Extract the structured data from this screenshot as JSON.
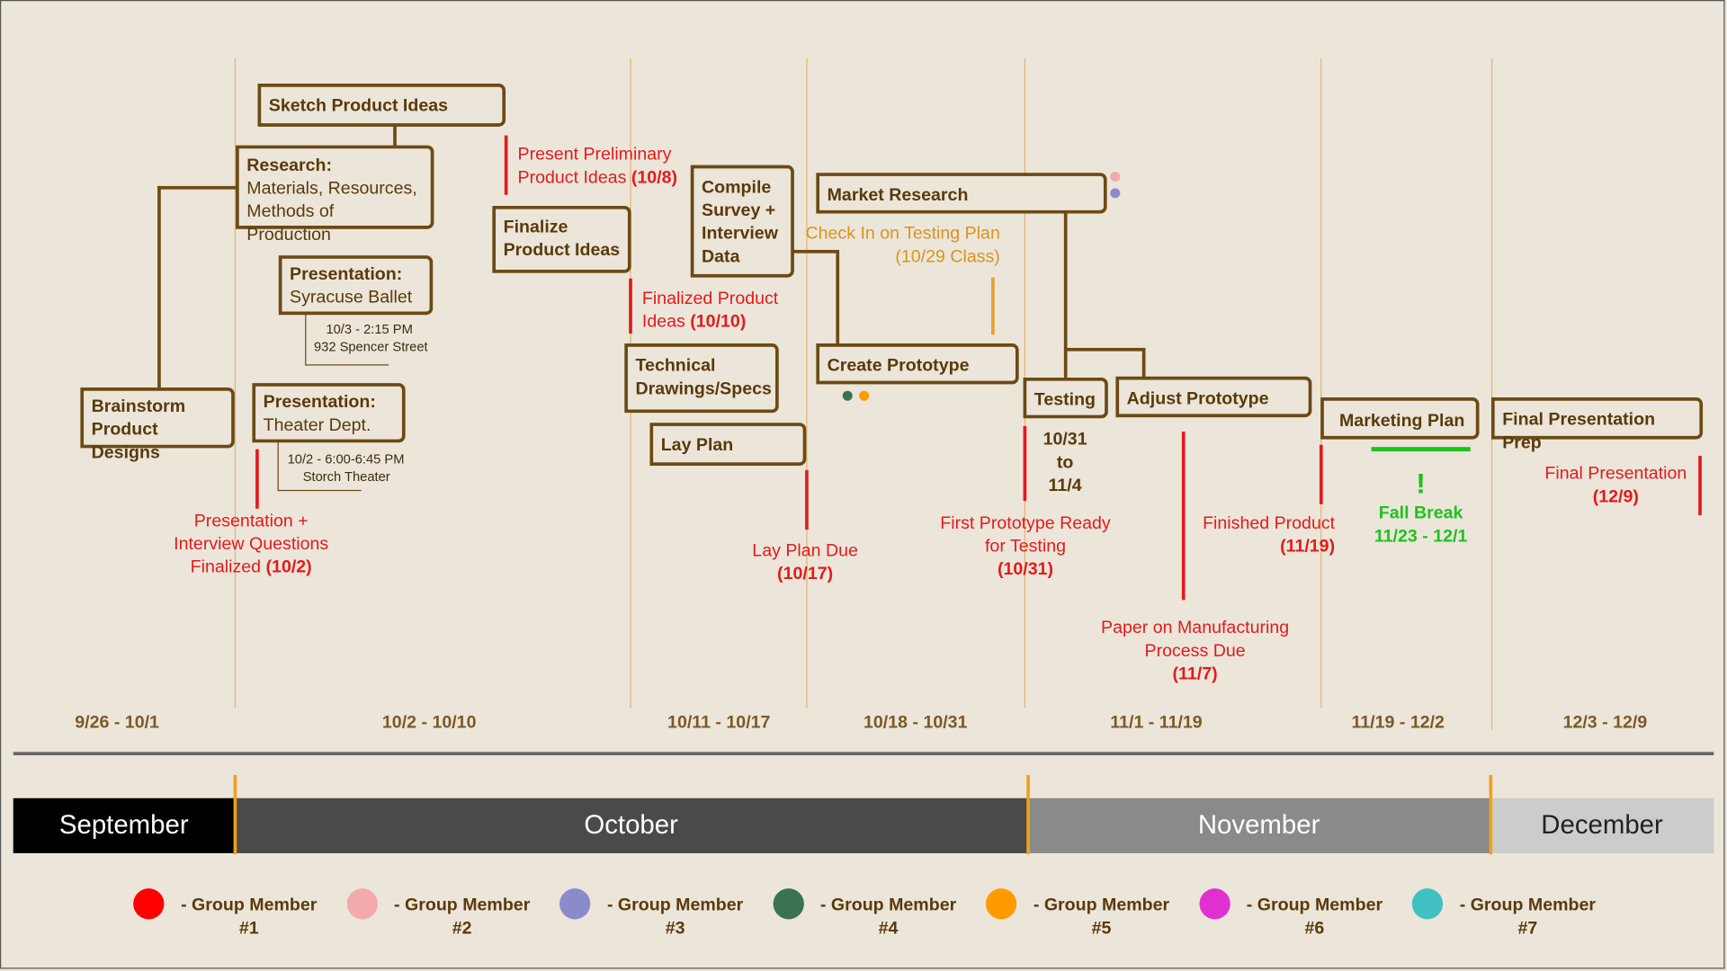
{
  "boxes": {
    "sketch": {
      "title": "Sketch Product Ideas"
    },
    "research": {
      "title": "Research:",
      "sub1": "Materials, Resources,",
      "sub2": "Methods of Production"
    },
    "brainstorm": {
      "line1": "Brainstorm",
      "line2": "Product Designs"
    },
    "pres_ballet": {
      "title": "Presentation:",
      "sub": "Syracuse Ballet"
    },
    "pres_theater": {
      "title": "Presentation:",
      "sub": "Theater Dept."
    },
    "finalize": {
      "line1": "Finalize",
      "line2": "Product Ideas"
    },
    "compile": {
      "line1": "Compile",
      "line2": "Survey +",
      "line3": "Interview",
      "line4": "Data"
    },
    "technical": {
      "line1": "Technical",
      "line2": "Drawings/Specs"
    },
    "lay_plan": {
      "title": "Lay Plan"
    },
    "market": {
      "title": "Market Research"
    },
    "create_proto": {
      "title": "Create Prototype"
    },
    "testing": {
      "title": "Testing"
    },
    "adjust": {
      "title": "Adjust Prototype"
    },
    "marketing": {
      "title": "Marketing Plan"
    },
    "final_prep": {
      "title": "Final Presentation Prep"
    }
  },
  "details": {
    "ballet_time": "10/3 - 2:15 PM",
    "ballet_place": "932 Spencer Street",
    "theater_time": "10/2 - 6:00-6:45 PM",
    "theater_place": "Storch Theater",
    "testing_range1": "10/31",
    "testing_range2": "to",
    "testing_range3": "11/4"
  },
  "milestones": {
    "pres_questions": {
      "l1": "Presentation +",
      "l2": "Interview Questions",
      "l3": "Finalized ",
      "date": "(10/2)"
    },
    "present_prelim": {
      "l1": "Present Preliminary",
      "l2": "Product Ideas ",
      "date": "(10/8)"
    },
    "finalized": {
      "l1": "Finalized Product",
      "l2": "Ideas ",
      "date": "(10/10)"
    },
    "lay_due": {
      "l1": "Lay Plan Due",
      "date": "(10/17)"
    },
    "check_in": {
      "l1": "Check In on Testing Plan",
      "l2": "(10/29 Class)"
    },
    "first_proto": {
      "l1": "First Prototype Ready",
      "l2": "for Testing",
      "date": "(10/31)"
    },
    "paper": {
      "l1": "Paper on Manufacturing",
      "l2": "Process Due",
      "date": "(11/7)"
    },
    "finished": {
      "l1": "Finished Product",
      "date": "(11/19)"
    },
    "fall_break": {
      "mark": "!",
      "l1": "Fall Break",
      "l2": "11/23 - 12/1"
    },
    "final_pres": {
      "l1": "Final Presentation",
      "date": "(12/9)"
    }
  },
  "weeks": [
    "9/26 - 10/1",
    "10/2 - 10/10",
    "10/11 - 10/17",
    "10/18 - 10/31",
    "11/1 - 11/19",
    "11/19 - 12/2",
    "12/3 - 12/9"
  ],
  "months": [
    "September",
    "October",
    "November",
    "December"
  ],
  "legend": [
    {
      "label": "- Group Member",
      "num": "#1",
      "color": "#ff0000"
    },
    {
      "label": "- Group Member",
      "num": "#2",
      "color": "#f4aaaa"
    },
    {
      "label": "- Group Member",
      "num": "#3",
      "color": "#8b8bcc"
    },
    {
      "label": "- Group Member",
      "num": "#4",
      "color": "#3b7352"
    },
    {
      "label": "- Group Member",
      "num": "#5",
      "color": "#ff9a00"
    },
    {
      "label": "- Group Member",
      "num": "#6",
      "color": "#e030d0"
    },
    {
      "label": "- Group Member",
      "num": "#7",
      "color": "#40c0c0"
    }
  ]
}
